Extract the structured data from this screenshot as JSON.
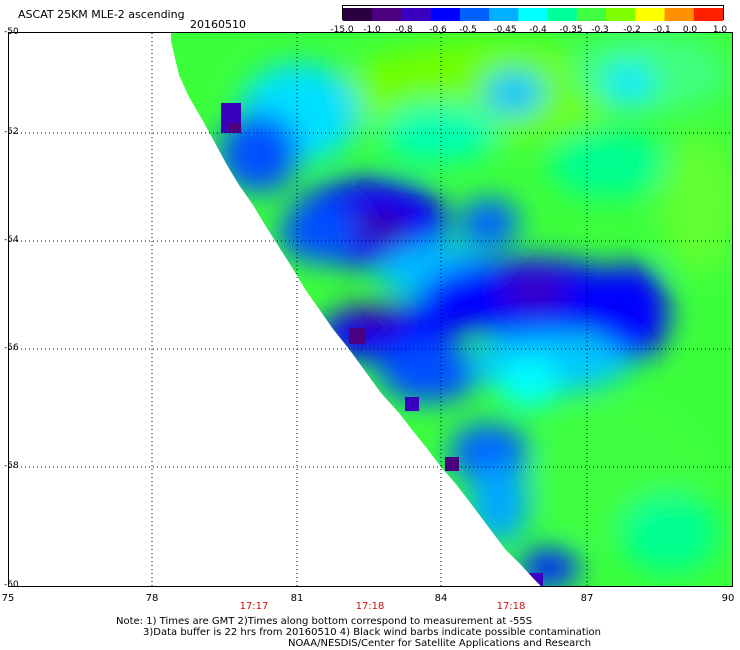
{
  "header": {
    "title": "ASCAT 25KM MLE-2 ascending",
    "date": "20160510"
  },
  "colorbar": {
    "labels": [
      "-15.0",
      "-1.0",
      "-0.8",
      "-0.6",
      "-0.5",
      "-0.45",
      "-0.4",
      "-0.35",
      "-0.3",
      "-0.2",
      "-0.1",
      "0.0",
      "1.0"
    ],
    "colors": [
      "#2a0040",
      "#4b0080",
      "#3a00c0",
      "#0000ff",
      "#0060ff",
      "#00b0ff",
      "#00ffff",
      "#00ff9a",
      "#40ff40",
      "#80ff00",
      "#ffff00",
      "#ff9000",
      "#ff2000"
    ]
  },
  "map": {
    "lat_labels": [
      "-50",
      "-52",
      "-54",
      "-56",
      "-58",
      "-60"
    ],
    "lon_labels": [
      "75",
      "78",
      "81",
      "84",
      "87",
      "90"
    ],
    "time_labels": [
      "17:17",
      "17:18",
      "17:18"
    ]
  },
  "notes": {
    "line1": "Note: 1) Times are GMT 2)Times along bottom correspond to measurement at -55S",
    "line2": "3)Data buffer is 22 hrs from 20160510 4) Black wind barbs indicate possible contamination",
    "line3": "NOAA/NESDIS/Center for Satellite Applications and Research"
  }
}
